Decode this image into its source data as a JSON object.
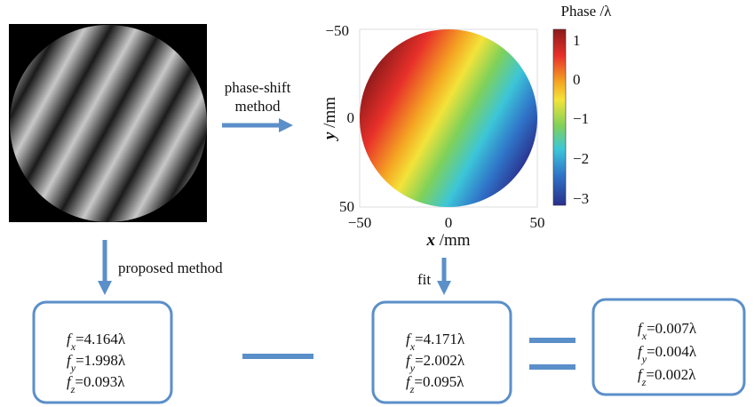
{
  "flow": {
    "step1_label": [
      "phase-shift",
      "method"
    ],
    "phase_map": {
      "y_axis_label": {
        "var": "y",
        "unit": " /mm"
      },
      "x_axis_label": {
        "var": "x",
        "unit": " /mm"
      },
      "y_ticks": [
        "−50",
        "0",
        "50"
      ],
      "x_ticks": [
        "−50",
        "0",
        "50"
      ],
      "colorbar_title": "Phase /λ",
      "colorbar_ticks": [
        "1",
        "0",
        "−1",
        "−2",
        "−3"
      ]
    },
    "step2_label": "proposed method",
    "step3_label": "fit",
    "boxes": [
      [
        {
          "var": "f",
          "sub": "x",
          "rest": "=4.164λ"
        },
        {
          "var": "f",
          "sub": "y",
          "rest": "=1.998λ"
        },
        {
          "var": "f",
          "sub": "z",
          "rest": "=0.093λ"
        }
      ],
      [
        {
          "var": "f",
          "sub": "x",
          "rest": "=4.171λ"
        },
        {
          "var": "f",
          "sub": "y",
          "rest": "=2.002λ"
        },
        {
          "var": "f",
          "sub": "z",
          "rest": "=0.095λ"
        }
      ],
      [
        {
          "var": "f",
          "sub": "x",
          "rest": "=0.007λ"
        },
        {
          "var": "f",
          "sub": "y",
          "rest": "=0.004λ"
        },
        {
          "var": "f",
          "sub": "z",
          "rest": "=0.002λ"
        }
      ]
    ]
  }
}
